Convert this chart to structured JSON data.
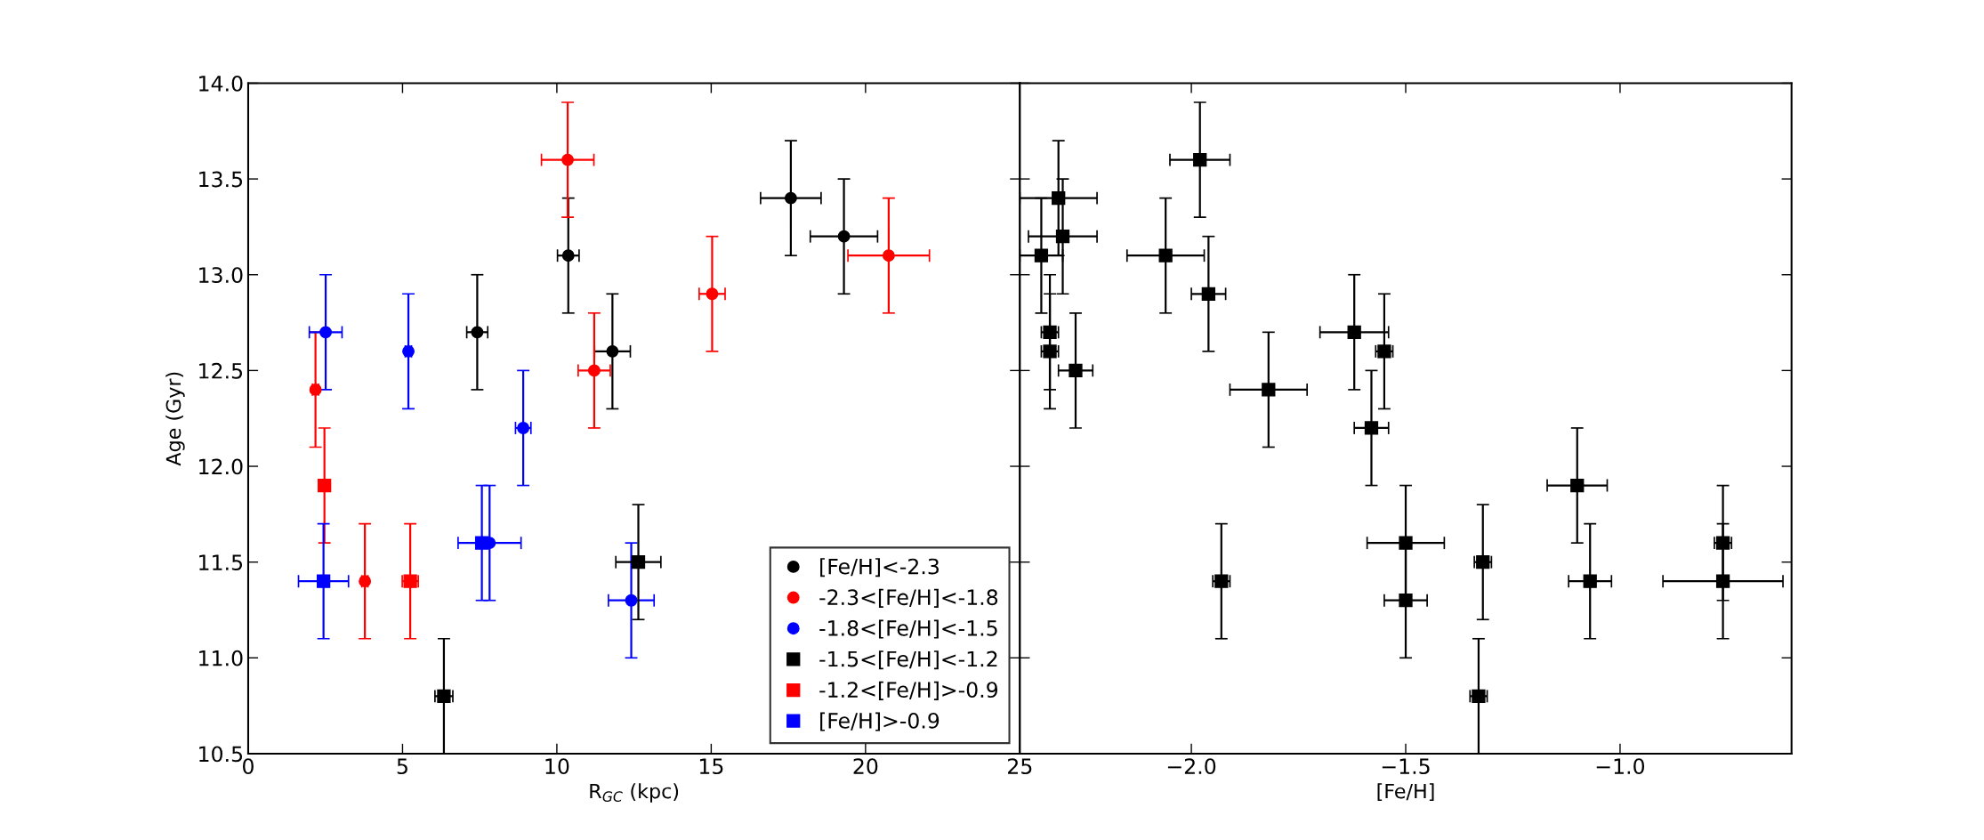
{
  "chart_data": [
    {
      "type": "scatter",
      "xlabel": "R$_{GC}$ (kpc)",
      "ylabel": "Age (Gyr)",
      "xlim": [
        0,
        25
      ],
      "ylim": [
        10.5,
        14.0
      ],
      "xticks": [
        0,
        5,
        10,
        15,
        20,
        25
      ],
      "yticks": [
        {
          "value": 10.5,
          "label": "10.5"
        },
        {
          "value": 11.0,
          "label": "11.0"
        },
        {
          "value": 11.5,
          "label": "11.5"
        },
        {
          "value": 12.0,
          "label": "12.0"
        },
        {
          "value": 12.5,
          "label": "12.5"
        },
        {
          "value": 13.0,
          "label": "13.0"
        },
        {
          "value": 13.5,
          "label": "13.5"
        },
        {
          "value": 14.0,
          "label": "14.0"
        }
      ],
      "legend": "bottom right",
      "grid": false,
      "series": [
        {
          "name": "[Fe/H]<-2.3",
          "color": "#000000",
          "marker": "circle",
          "x": [
            7.42,
            10.37,
            11.8,
            17.58,
            19.3
          ],
          "values": [
            12.7,
            13.1,
            12.6,
            13.4,
            13.2
          ],
          "xerrors": [
            0.34,
            0.35,
            0.58,
            0.98,
            1.09
          ],
          "errors": [
            0.3,
            0.3,
            0.3,
            0.3,
            0.3
          ]
        },
        {
          "name": "-2.3<[Fe/H]<-1.8",
          "color": "#ff0000",
          "marker": "circle",
          "x": [
            2.18,
            3.78,
            10.35,
            11.21,
            15.03,
            20.75
          ],
          "values": [
            12.4,
            11.4,
            13.6,
            12.5,
            12.9,
            13.1
          ],
          "xerrors": [
            0.1,
            0.1,
            0.85,
            0.52,
            0.42,
            1.32
          ],
          "errors": [
            0.3,
            0.3,
            0.3,
            0.3,
            0.3,
            0.3
          ]
        },
        {
          "name": "-1.8<[Fe/H]<-1.5",
          "color": "#0000ff",
          "marker": "circle",
          "x": [
            2.51,
            5.19,
            7.82,
            8.91,
            12.41
          ],
          "values": [
            12.7,
            12.6,
            11.6,
            12.2,
            11.3
          ],
          "xerrors": [
            0.53,
            0.1,
            1.02,
            0.25,
            0.74
          ],
          "errors": [
            0.3,
            0.3,
            0.3,
            0.3,
            0.3
          ]
        },
        {
          "name": "-1.5<[Fe/H]<-1.2",
          "color": "#000000",
          "marker": "square",
          "x": [
            6.34,
            12.64
          ],
          "values": [
            10.8,
            11.5
          ],
          "xerrors": [
            0.29,
            0.73
          ],
          "errors": [
            0.3,
            0.3
          ]
        },
        {
          "name": "-1.2<[Fe/H]>-0.9",
          "color": "#ff0000",
          "marker": "square",
          "x": [
            2.47,
            5.25
          ],
          "values": [
            11.9,
            11.4
          ],
          "xerrors": [
            0.1,
            0.26
          ],
          "errors": [
            0.3,
            0.3
          ]
        },
        {
          "name": "[Fe/H]>-0.9",
          "color": "#0000ff",
          "marker": "square",
          "x": [
            2.44,
            7.57
          ],
          "values": [
            11.4,
            11.6
          ],
          "xerrors": [
            0.81,
            0.1
          ],
          "errors": [
            0.3,
            0.3
          ]
        }
      ]
    },
    {
      "type": "scatter",
      "xlabel": "[Fe/H]",
      "xlim": [
        -2.4,
        -0.6
      ],
      "ylim": [
        10.5,
        14.0
      ],
      "xticks": [
        {
          "value": -2.0,
          "label": "−2.0"
        },
        {
          "value": -1.5,
          "label": "−1.5"
        },
        {
          "value": -1.0,
          "label": "−1.0"
        }
      ],
      "yticks": [
        10.5,
        11.0,
        11.5,
        12.0,
        12.5,
        13.0,
        13.5,
        14.0
      ],
      "tick_labels": "x",
      "grid": false,
      "series": [
        {
          "color": "#000000",
          "marker": "square",
          "x": [
            -2.35,
            -2.33,
            -2.33,
            -2.31,
            -2.3,
            -2.27,
            -2.06,
            -1.98,
            -1.96,
            -1.93,
            -1.82,
            -1.62,
            -1.58,
            -1.55,
            -1.5,
            -1.5,
            -1.33,
            -1.32,
            -1.1,
            -1.07,
            -0.76,
            -0.76
          ],
          "values": [
            13.1,
            12.7,
            12.6,
            13.4,
            13.2,
            12.5,
            13.1,
            13.6,
            12.9,
            11.4,
            12.4,
            12.7,
            12.2,
            12.6,
            11.6,
            11.3,
            10.8,
            11.5,
            11.9,
            11.4,
            11.6,
            11.4
          ],
          "xerrors": [
            0.05,
            0.02,
            0.02,
            0.09,
            0.08,
            0.04,
            0.09,
            0.07,
            0.04,
            0.02,
            0.09,
            0.08,
            0.04,
            0.02,
            0.09,
            0.05,
            0.02,
            0.02,
            0.07,
            0.05,
            0.02,
            0.14
          ],
          "errors": [
            0.3,
            0.3,
            0.3,
            0.3,
            0.3,
            0.3,
            0.3,
            0.3,
            0.3,
            0.3,
            0.3,
            0.3,
            0.3,
            0.3,
            0.3,
            0.3,
            0.3,
            0.3,
            0.3,
            0.3,
            0.3,
            0.3
          ]
        }
      ]
    }
  ]
}
